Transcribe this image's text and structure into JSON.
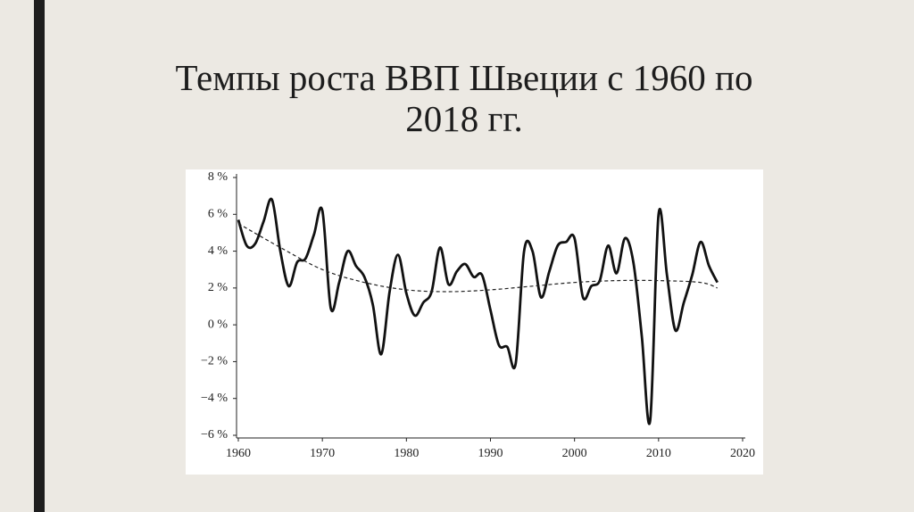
{
  "chart_data": {
    "type": "line",
    "title": [
      "Темпы роста ВВП Швеции с 1960 по",
      "2018 гг."
    ],
    "x": [
      1960,
      1961,
      1962,
      1963,
      1964,
      1965,
      1966,
      1967,
      1968,
      1969,
      1970,
      1971,
      1972,
      1973,
      1974,
      1975,
      1976,
      1977,
      1978,
      1979,
      1980,
      1981,
      1982,
      1983,
      1984,
      1985,
      1986,
      1987,
      1988,
      1989,
      1990,
      1991,
      1992,
      1993,
      1994,
      1995,
      1996,
      1997,
      1998,
      1999,
      2000,
      2001,
      2002,
      2003,
      2004,
      2005,
      2006,
      2007,
      2008,
      2009,
      2010,
      2011,
      2012,
      2013,
      2014,
      2015,
      2016,
      2017
    ],
    "series": [
      {
        "color": "#111111",
        "dashed": false,
        "values": [
          5.7,
          4.3,
          4.4,
          5.6,
          6.8,
          4.0,
          2.1,
          3.4,
          3.6,
          4.9,
          6.2,
          0.9,
          2.3,
          4.0,
          3.2,
          2.6,
          1.1,
          -1.6,
          1.8,
          3.8,
          1.7,
          0.5,
          1.2,
          1.8,
          4.2,
          2.2,
          2.9,
          3.3,
          2.6,
          2.7,
          0.8,
          -1.1,
          -1.2,
          -2.1,
          4.0,
          4.0,
          1.5,
          2.9,
          4.3,
          4.5,
          4.7,
          1.5,
          2.1,
          2.4,
          4.3,
          2.8,
          4.7,
          3.4,
          -0.6,
          -5.2,
          6.0,
          2.7,
          -0.3,
          1.2,
          2.7,
          4.5,
          3.2,
          2.3
        ]
      },
      {
        "color": "#222222",
        "dashed": true,
        "x": [
          1960,
          1965,
          1970,
          1975,
          1980,
          1985,
          1990,
          1995,
          2000,
          2005,
          2010,
          2015,
          2017
        ],
        "values": [
          5.5,
          4.2,
          3.0,
          2.3,
          1.9,
          1.8,
          1.9,
          2.1,
          2.3,
          2.4,
          2.4,
          2.3,
          2.0
        ]
      }
    ],
    "xlim": [
      1960,
      2020
    ],
    "xticks": [
      1960,
      1970,
      1980,
      1990,
      2000,
      2010,
      2020
    ],
    "ylim": [
      -6,
      8
    ],
    "yticks": [
      {
        "value": -6,
        "label": "−6 %"
      },
      {
        "value": -4,
        "label": "−4 %"
      },
      {
        "value": -2,
        "label": "−2 %"
      },
      {
        "value": 0,
        "label": "0 %"
      },
      {
        "value": 2,
        "label": "2 %"
      },
      {
        "value": 4,
        "label": "4 %"
      },
      {
        "value": 6,
        "label": "6 %"
      },
      {
        "value": 8,
        "label": "8 %"
      }
    ],
    "grid": false
  }
}
